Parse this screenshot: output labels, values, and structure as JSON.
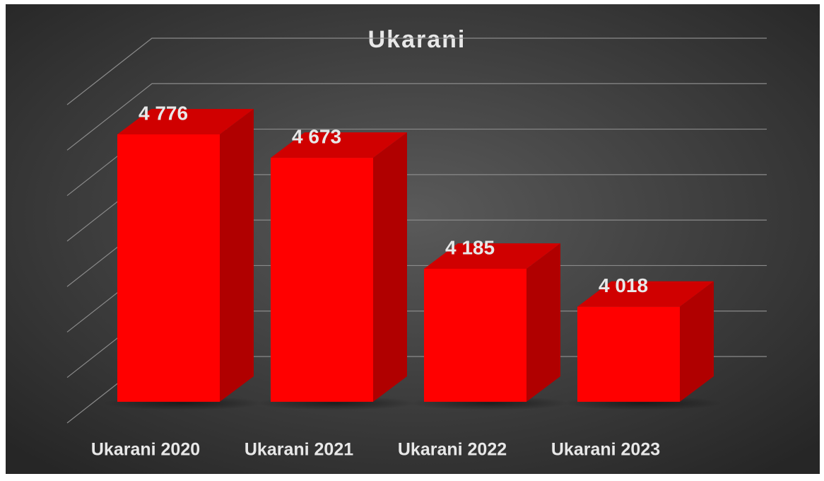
{
  "chart_data": {
    "type": "bar3d",
    "title": "Ukarani",
    "categories": [
      "Ukarani 2020",
      "Ukarani 2021",
      "Ukarani 2022",
      "Ukarani 2023"
    ],
    "values": [
      4776,
      4673,
      4185,
      4018
    ],
    "value_labels": [
      "4 776",
      "4 673",
      "4 185",
      "4 018"
    ],
    "color": "#ff0000",
    "ylim": [
      3600,
      5000
    ],
    "yticks": [
      3600,
      3800,
      4000,
      4200,
      4400,
      4600,
      4800,
      5000
    ],
    "grid": true
  }
}
